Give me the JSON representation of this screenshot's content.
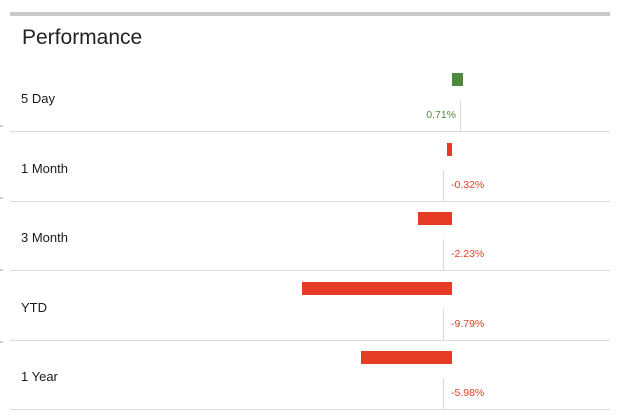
{
  "title": "Performance",
  "colors": {
    "positive": "#4f8a3b",
    "negative": "#e63b25",
    "divider": "#dcdcdc"
  },
  "chart_data": {
    "type": "bar",
    "orientation": "horizontal",
    "categories": [
      "5 Day",
      "1 Month",
      "3 Month",
      "YTD",
      "1 Year"
    ],
    "values": [
      0.71,
      -0.32,
      -2.23,
      -9.79,
      -5.98
    ],
    "value_labels": [
      "0.71%",
      "-0.32%",
      "-2.23%",
      "-9.79%",
      "-5.98%"
    ],
    "unit": "%"
  }
}
